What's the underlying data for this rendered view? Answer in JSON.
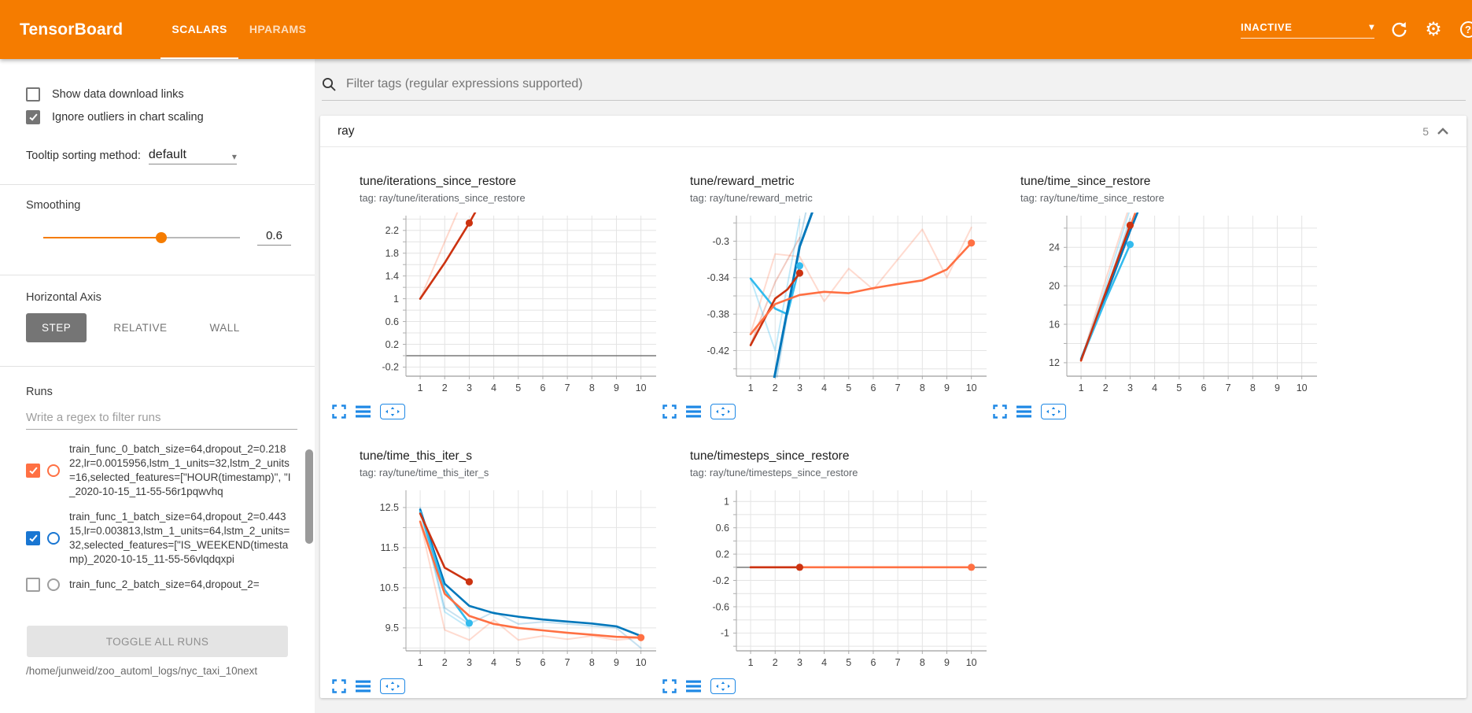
{
  "topbar": {
    "logo": "TensorBoard",
    "tabs": [
      {
        "label": "SCALARS",
        "active": true
      },
      {
        "label": "HPARAMS",
        "active": false
      }
    ],
    "status": {
      "label": "INACTIVE"
    },
    "icons": [
      "reload-icon",
      "settings-gear-icon",
      "help-icon"
    ],
    "colors": {
      "bar": "#f57c00"
    }
  },
  "sidebar": {
    "checkboxes": [
      {
        "label": "Show data download links",
        "checked": false
      },
      {
        "label": "Ignore outliers in chart scaling",
        "checked": true
      }
    ],
    "tooltip_sorting": {
      "label": "Tooltip sorting method:",
      "value": "default"
    },
    "smoothing": {
      "label": "Smoothing",
      "value": "0.6",
      "fraction": 0.6
    },
    "horizontal_axis": {
      "label": "Horizontal Axis",
      "options": [
        "STEP",
        "RELATIVE",
        "WALL"
      ],
      "selected": "STEP"
    },
    "runs": {
      "label": "Runs",
      "filter_placeholder": "Write a regex to filter runs",
      "items": [
        {
          "color": "#ff7043",
          "checked": true,
          "name": "train_func_0_batch_size=64,dropout_2=0.21822,lr=0.0015956,lstm_1_units=32,lstm_2_units=16,selected_features=[\"HOUR(timestamp)\", \"I_2020-10-15_11-55-56r1pqwvhq"
        },
        {
          "color": "#1976d2",
          "checked": true,
          "name": "train_func_1_batch_size=64,dropout_2=0.44315,lr=0.003813,lstm_1_units=64,lstm_2_units=32,selected_features=[\"IS_WEEKEND(timestamp)_2020-10-15_11-55-56vlqdqxpi"
        },
        {
          "color": "#9e9e9e",
          "checked": false,
          "name": "train_func_2_batch_size=64,dropout_2="
        }
      ],
      "toggle_all_label": "TOGGLE ALL RUNS",
      "log_path": "/home/junweid/zoo_automl_logs/nyc_taxi_10next"
    }
  },
  "main": {
    "filter_placeholder": "Filter tags (regular expressions supported)",
    "search_icon": "search-icon",
    "section": {
      "title": "ray",
      "count": "5",
      "collapse_icon": "chevron-up-icon"
    },
    "chart_tool_icons": [
      "fullscreen-icon",
      "data-series-icon",
      "fit-domain-icon"
    ]
  },
  "chart_data": [
    {
      "type": "line",
      "title": "tune/iterations_since_restore",
      "tag": "tag: ray/tune/iterations_since_restore",
      "xlabel": "",
      "ylabel": "",
      "x_ticks": [
        1,
        2,
        3,
        4,
        5,
        6,
        7,
        8,
        9,
        10
      ],
      "x_range": [
        0.42,
        10.62
      ],
      "y_range": [
        -0.36,
        2.46
      ],
      "y_grid": 0.2,
      "y_labels": [
        [
          2.2,
          "2.2"
        ],
        [
          1.8,
          "1.8"
        ],
        [
          1.4,
          "1.4"
        ],
        [
          1,
          "1"
        ],
        [
          0.6,
          "0.6"
        ],
        [
          0.2,
          "0.2"
        ],
        [
          -0.2,
          "-0.2"
        ]
      ],
      "zero_line": true,
      "series": [
        {
          "name": "train_func_0 raw",
          "color": "#ff7043",
          "opacity": 0.27,
          "width": 2,
          "points": [
            [
              1,
              1
            ],
            [
              2,
              2
            ],
            [
              3,
              3
            ]
          ]
        },
        {
          "name": "train_func_0 smoothed",
          "color": "#cc3311",
          "opacity": 1,
          "width": 2.6,
          "points": [
            [
              1,
              1
            ],
            [
              2,
              1.63
            ],
            [
              3,
              2.33
            ],
            [
              3.35,
              2.6
            ]
          ]
        }
      ],
      "dots": [
        {
          "x": 3,
          "y": 2.33,
          "color": "#cc3311"
        }
      ]
    },
    {
      "type": "line",
      "title": "tune/reward_metric",
      "tag": "tag: ray/tune/reward_metric",
      "xlabel": "",
      "ylabel": "",
      "x_ticks": [
        1,
        2,
        3,
        4,
        5,
        6,
        7,
        8,
        9,
        10
      ],
      "x_range": [
        0.42,
        10.62
      ],
      "y_range": [
        -0.448,
        -0.272
      ],
      "y_grid": 0.02,
      "y_labels": [
        [
          -0.3,
          "-0.3"
        ],
        [
          -0.34,
          "-0.34"
        ],
        [
          -0.38,
          "-0.38"
        ],
        [
          -0.42,
          "-0.42"
        ]
      ],
      "zero_line": false,
      "series": [
        {
          "name": "orange raw",
          "color": "#ff7043",
          "opacity": 0.25,
          "width": 2,
          "points": [
            [
              1,
              -0.401
            ],
            [
              2,
              -0.314
            ],
            [
              3,
              -0.317
            ],
            [
              4,
              -0.366
            ],
            [
              5,
              -0.33
            ],
            [
              6,
              -0.353
            ],
            [
              7,
              -0.32
            ],
            [
              8,
              -0.287
            ],
            [
              9,
              -0.34
            ],
            [
              10,
              -0.285
            ]
          ]
        },
        {
          "name": "red raw",
          "color": "#cc3311",
          "opacity": 0.25,
          "width": 2,
          "points": [
            [
              1,
              -0.413
            ],
            [
              2,
              -0.345
            ],
            [
              3,
              -0.296
            ]
          ]
        },
        {
          "name": "cyan raw",
          "color": "#33bbee",
          "opacity": 0.3,
          "width": 2,
          "points": [
            [
              1,
              -0.341
            ],
            [
              2,
              -0.42
            ],
            [
              3,
              -0.276
            ]
          ]
        },
        {
          "name": "blue raw",
          "color": "#0077bb",
          "opacity": 0.25,
          "width": 2,
          "points": [
            [
              2,
              -0.46
            ],
            [
              3,
              -0.3
            ],
            [
              3.8,
              -0.2
            ]
          ]
        },
        {
          "name": "cyan smoothed",
          "color": "#33bbee",
          "opacity": 1,
          "width": 2.6,
          "points": [
            [
              1,
              -0.341
            ],
            [
              2,
              -0.374
            ],
            [
              2.5,
              -0.38
            ],
            [
              3,
              -0.327
            ]
          ]
        },
        {
          "name": "blue smoothed",
          "color": "#0077bb",
          "opacity": 1,
          "width": 3,
          "points": [
            [
              1.95,
              -0.452
            ],
            [
              3,
              -0.306
            ],
            [
              3.6,
              -0.262
            ]
          ]
        },
        {
          "name": "red smoothed",
          "color": "#cc3311",
          "opacity": 1,
          "width": 2.6,
          "points": [
            [
              1,
              -0.414
            ],
            [
              2,
              -0.363
            ],
            [
              2.5,
              -0.353
            ],
            [
              3,
              -0.335
            ]
          ]
        },
        {
          "name": "orange smoothed",
          "color": "#ff7043",
          "opacity": 1,
          "width": 2.6,
          "points": [
            [
              1,
              -0.402
            ],
            [
              2,
              -0.369
            ],
            [
              3,
              -0.359
            ],
            [
              4,
              -0.3555
            ],
            [
              5,
              -0.357
            ],
            [
              6,
              -0.3515
            ],
            [
              7,
              -0.347
            ],
            [
              8,
              -0.343
            ],
            [
              9,
              -0.331
            ],
            [
              10,
              -0.302
            ]
          ]
        }
      ],
      "dots": [
        {
          "x": 3,
          "y": -0.327,
          "color": "#33bbee"
        },
        {
          "x": 3,
          "y": -0.335,
          "color": "#cc3311"
        },
        {
          "x": 10,
          "y": -0.302,
          "color": "#ff7043"
        }
      ]
    },
    {
      "type": "line",
      "title": "tune/time_since_restore",
      "tag": "tag: ray/tune/time_since_restore",
      "xlabel": "",
      "ylabel": "",
      "x_ticks": [
        1,
        2,
        3,
        4,
        5,
        6,
        7,
        8,
        9,
        10
      ],
      "x_range": [
        0.42,
        10.62
      ],
      "y_range": [
        10.6,
        27.3
      ],
      "y_grid": 2,
      "y_labels": [
        [
          24,
          "24"
        ],
        [
          20,
          "20"
        ],
        [
          16,
          "16"
        ],
        [
          12,
          "12"
        ]
      ],
      "zero_line": false,
      "series": [
        {
          "name": "orange raw",
          "color": "#ff7043",
          "opacity": 0.25,
          "width": 2,
          "points": [
            [
              1,
              12.2
            ],
            [
              2,
              20.6
            ],
            [
              3,
              28.5
            ]
          ]
        },
        {
          "name": "cyan raw",
          "color": "#33bbee",
          "opacity": 0.3,
          "width": 2,
          "points": [
            [
              1,
              12.3
            ],
            [
              2,
              19.9
            ],
            [
              3,
              28
            ]
          ]
        },
        {
          "name": "blue raw",
          "color": "#0077bb",
          "opacity": 0.25,
          "width": 2,
          "points": [
            [
              1,
              12.4
            ],
            [
              2,
              19.2
            ],
            [
              3,
              27
            ]
          ]
        },
        {
          "name": "orange smoothed",
          "color": "#ff7043",
          "opacity": 1,
          "width": 2.6,
          "points": [
            [
              1,
              12.2
            ],
            [
              2,
              19.1
            ],
            [
              3,
              26.1
            ],
            [
              3.2,
              27.5
            ]
          ]
        },
        {
          "name": "blue smoothed",
          "color": "#0077bb",
          "opacity": 1,
          "width": 2.6,
          "points": [
            [
              1,
              12.4
            ],
            [
              2,
              18.9
            ],
            [
              3,
              25.7
            ],
            [
              3.3,
              27.6
            ]
          ]
        },
        {
          "name": "cyan smoothed",
          "color": "#33bbee",
          "opacity": 1,
          "width": 2.6,
          "points": [
            [
              1,
              12.3
            ],
            [
              2,
              18.5
            ],
            [
              3,
              24.3
            ]
          ]
        },
        {
          "name": "red smoothed",
          "color": "#cc3311",
          "opacity": 1,
          "width": 2.6,
          "points": [
            [
              1,
              12.25
            ],
            [
              2,
              19.3
            ],
            [
              3,
              26.3
            ]
          ]
        }
      ],
      "dots": [
        {
          "x": 3,
          "y": 26.3,
          "color": "#cc3311"
        },
        {
          "x": 3,
          "y": 24.3,
          "color": "#33bbee"
        }
      ]
    },
    {
      "type": "line",
      "title": "tune/time_this_iter_s",
      "tag": "tag: ray/tune/time_this_iter_s",
      "xlabel": "",
      "ylabel": "",
      "x_ticks": [
        1,
        2,
        3,
        4,
        5,
        6,
        7,
        8,
        9,
        10
      ],
      "x_range": [
        0.42,
        10.62
      ],
      "y_range": [
        8.93,
        12.93
      ],
      "y_grid": 0.5,
      "y_labels": [
        [
          12.5,
          "12.5"
        ],
        [
          11.5,
          "11.5"
        ],
        [
          10.5,
          "10.5"
        ],
        [
          9.5,
          "9.5"
        ]
      ],
      "zero_line": false,
      "series": [
        {
          "name": "orange raw",
          "color": "#ff7043",
          "opacity": 0.25,
          "width": 2,
          "points": [
            [
              1,
              12.15
            ],
            [
              2,
              9.45
            ],
            [
              3,
              9.2
            ],
            [
              4,
              9.7
            ],
            [
              5,
              9.2
            ],
            [
              6,
              9.3
            ],
            [
              7,
              9.22
            ],
            [
              8,
              9.3
            ],
            [
              9,
              9.2
            ],
            [
              10,
              9.25
            ]
          ]
        },
        {
          "name": "cyan raw",
          "color": "#33bbee",
          "opacity": 0.3,
          "width": 2,
          "points": [
            [
              1,
              12.45
            ],
            [
              2,
              9.9
            ],
            [
              3,
              9.5
            ]
          ]
        },
        {
          "name": "blue raw",
          "color": "#0077bb",
          "opacity": 0.22,
          "width": 2,
          "points": [
            [
              1,
              12.5
            ],
            [
              2,
              10.0
            ],
            [
              3,
              9.6
            ],
            [
              4,
              9.9
            ],
            [
              5,
              9.6
            ],
            [
              6,
              9.65
            ],
            [
              7,
              9.6
            ],
            [
              8,
              9.55
            ],
            [
              9,
              9.5
            ],
            [
              10,
              9.0
            ]
          ]
        },
        {
          "name": "blue smoothed",
          "color": "#0077bb",
          "opacity": 1,
          "width": 2.6,
          "points": [
            [
              1,
              12.45
            ],
            [
              2,
              10.6
            ],
            [
              3,
              10.05
            ],
            [
              4,
              9.87
            ],
            [
              5,
              9.78
            ],
            [
              6,
              9.71
            ],
            [
              7,
              9.66
            ],
            [
              8,
              9.61
            ],
            [
              9,
              9.54
            ],
            [
              10,
              9.3
            ]
          ]
        },
        {
          "name": "cyan smoothed",
          "color": "#33bbee",
          "opacity": 1,
          "width": 2.6,
          "points": [
            [
              1,
              12.4
            ],
            [
              2,
              10.45
            ],
            [
              3,
              9.62
            ]
          ]
        },
        {
          "name": "orange smoothed",
          "color": "#ff7043",
          "opacity": 1,
          "width": 2.6,
          "points": [
            [
              1,
              12.15
            ],
            [
              2,
              10.35
            ],
            [
              3,
              9.8
            ],
            [
              4,
              9.6
            ],
            [
              5,
              9.5
            ],
            [
              6,
              9.44
            ],
            [
              7,
              9.38
            ],
            [
              8,
              9.33
            ],
            [
              9,
              9.28
            ],
            [
              10,
              9.26
            ]
          ]
        },
        {
          "name": "red smoothed",
          "color": "#cc3311",
          "opacity": 1,
          "width": 2.6,
          "points": [
            [
              1,
              12.35
            ],
            [
              2,
              11.0
            ],
            [
              3,
              10.65
            ]
          ]
        }
      ],
      "dots": [
        {
          "x": 3,
          "y": 10.65,
          "color": "#cc3311"
        },
        {
          "x": 3,
          "y": 9.62,
          "color": "#33bbee"
        },
        {
          "x": 10,
          "y": 9.26,
          "color": "#ff7043"
        }
      ]
    },
    {
      "type": "line",
      "title": "tune/timesteps_since_restore",
      "tag": "tag: ray/tune/timesteps_since_restore",
      "xlabel": "",
      "ylabel": "",
      "x_ticks": [
        1,
        2,
        3,
        4,
        5,
        6,
        7,
        8,
        9,
        10
      ],
      "x_range": [
        0.42,
        10.62
      ],
      "y_range": [
        -1.27,
        1.17
      ],
      "y_grid": 0.2,
      "y_labels": [
        [
          1,
          "1"
        ],
        [
          0.6,
          "0.6"
        ],
        [
          0.2,
          "0.2"
        ],
        [
          -0.2,
          "-0.2"
        ],
        [
          -0.6,
          "-0.6"
        ],
        [
          -1,
          "-1"
        ]
      ],
      "zero_line": true,
      "series": [
        {
          "name": "orange smoothed",
          "color": "#ff7043",
          "opacity": 1,
          "width": 2.6,
          "points": [
            [
              1,
              0
            ],
            [
              10,
              0
            ]
          ]
        },
        {
          "name": "red smoothed",
          "color": "#cc3311",
          "opacity": 1,
          "width": 2.6,
          "points": [
            [
              1,
              0
            ],
            [
              3,
              0
            ]
          ]
        }
      ],
      "dots": [
        {
          "x": 3,
          "y": 0,
          "color": "#cc3311"
        },
        {
          "x": 10,
          "y": 0,
          "color": "#ff7043"
        }
      ]
    }
  ]
}
